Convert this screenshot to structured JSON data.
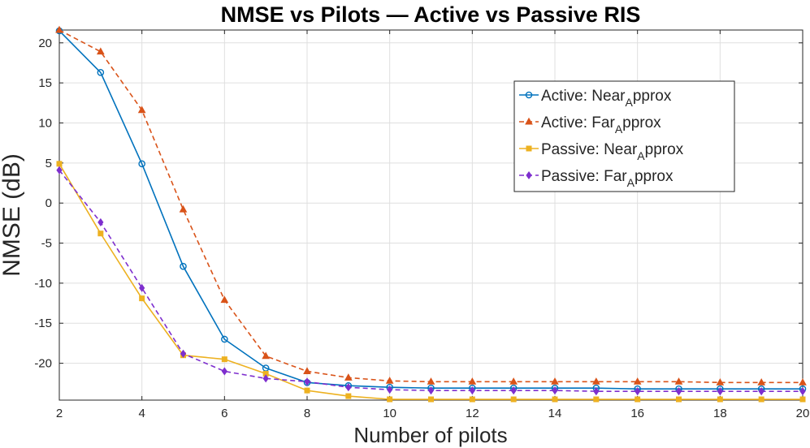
{
  "chart_data": {
    "type": "line",
    "title": "NMSE vs Pilots — Active vs Passive RIS",
    "xlabel": "Number of pilots",
    "ylabel": "NMSE (dB)",
    "xlim": [
      2,
      20
    ],
    "ylim": [
      -24.6,
      21.6
    ],
    "xticks": [
      2,
      4,
      6,
      8,
      10,
      12,
      14,
      16,
      18,
      20
    ],
    "yticks": [
      20,
      15,
      10,
      5,
      0,
      -5,
      -10,
      -15,
      -20
    ],
    "grid": true,
    "legend_position": "top-right",
    "x": [
      2,
      3,
      4,
      5,
      6,
      7,
      8,
      9,
      10,
      11,
      12,
      13,
      14,
      15,
      16,
      17,
      18,
      19,
      20
    ],
    "series": [
      {
        "name": "Active: Near_Approx",
        "legend_main": "Active: Near",
        "legend_sub": "A",
        "legend_tail": "pprox",
        "color": "#0072BD",
        "dash": "solid",
        "marker": "circle",
        "values": [
          21.5,
          16.3,
          4.9,
          -7.9,
          -17.0,
          -20.6,
          -22.4,
          -22.8,
          -23.0,
          -23.1,
          -23.1,
          -23.1,
          -23.1,
          -23.1,
          -23.2,
          -23.2,
          -23.2,
          -23.2,
          -23.2
        ]
      },
      {
        "name": "Active: Far_Approx",
        "legend_main": "Active: Far",
        "legend_sub": "A",
        "legend_tail": "pprox",
        "color": "#D95319",
        "dash": "dashed",
        "marker": "triangle",
        "values": [
          21.6,
          18.9,
          11.6,
          -0.8,
          -12.1,
          -19.1,
          -21.0,
          -21.8,
          -22.2,
          -22.3,
          -22.3,
          -22.3,
          -22.3,
          -22.3,
          -22.3,
          -22.3,
          -22.4,
          -22.4,
          -22.4
        ]
      },
      {
        "name": "Passive: Near_Approx",
        "legend_main": "Passive: Near",
        "legend_sub": "A",
        "legend_tail": "pprox",
        "color": "#EDB120",
        "dash": "solid",
        "marker": "square",
        "values": [
          4.9,
          -3.8,
          -11.9,
          -19.0,
          -19.5,
          -21.3,
          -23.4,
          -24.1,
          -24.5,
          -24.5,
          -24.5,
          -24.5,
          -24.5,
          -24.5,
          -24.5,
          -24.5,
          -24.5,
          -24.5,
          -24.5
        ]
      },
      {
        "name": "Passive: Far_Approx",
        "legend_main": "Passive: Far",
        "legend_sub": "A",
        "legend_tail": "pprox",
        "color": "#7E2FCE",
        "dash": "dashed",
        "marker": "diamond",
        "values": [
          4.1,
          -2.4,
          -10.6,
          -18.8,
          -21.0,
          -21.9,
          -22.3,
          -23.0,
          -23.3,
          -23.4,
          -23.4,
          -23.4,
          -23.4,
          -23.5,
          -23.5,
          -23.5,
          -23.5,
          -23.5,
          -23.5
        ]
      }
    ]
  }
}
